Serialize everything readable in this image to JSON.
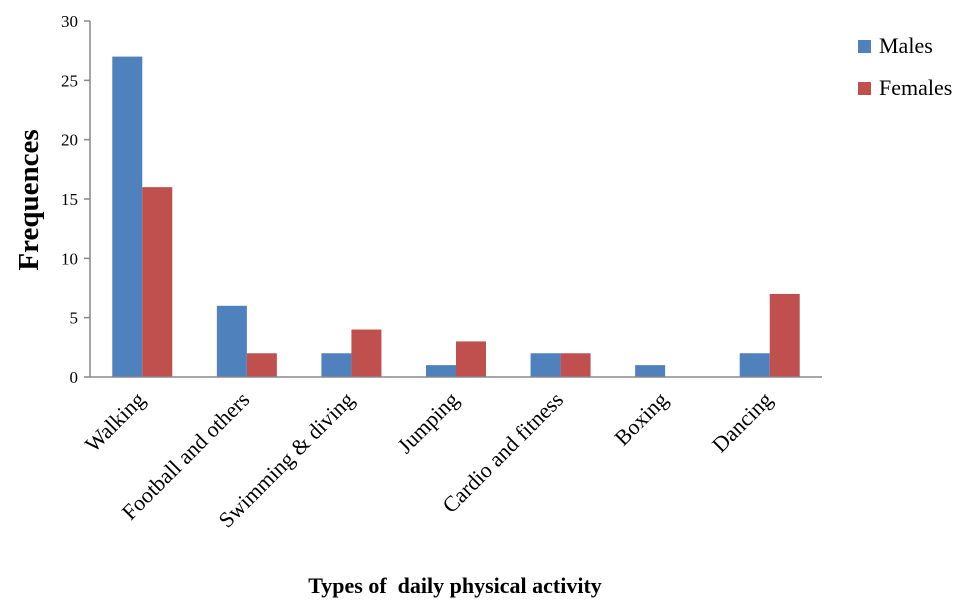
{
  "chart_data": {
    "type": "bar",
    "title": "",
    "xlabel": "Types of  daily physical activity",
    "ylabel": "Frequences",
    "categories": [
      "Walking",
      "Football and others",
      "Swimming & diving",
      "Jumping",
      "Cardio and fitness",
      "Boxing",
      "Dancing"
    ],
    "series": [
      {
        "name": "Males",
        "color": "#4f81bd",
        "values": [
          27,
          6,
          2,
          1,
          2,
          1,
          2
        ]
      },
      {
        "name": "Females",
        "color": "#c0504d",
        "values": [
          16,
          2,
          4,
          3,
          2,
          0,
          7
        ]
      }
    ],
    "ylim": [
      0,
      30
    ],
    "yticks": [
      "0",
      "5",
      "10",
      "15",
      "20",
      "25",
      "30"
    ],
    "grid": false,
    "legend": "top-right"
  }
}
